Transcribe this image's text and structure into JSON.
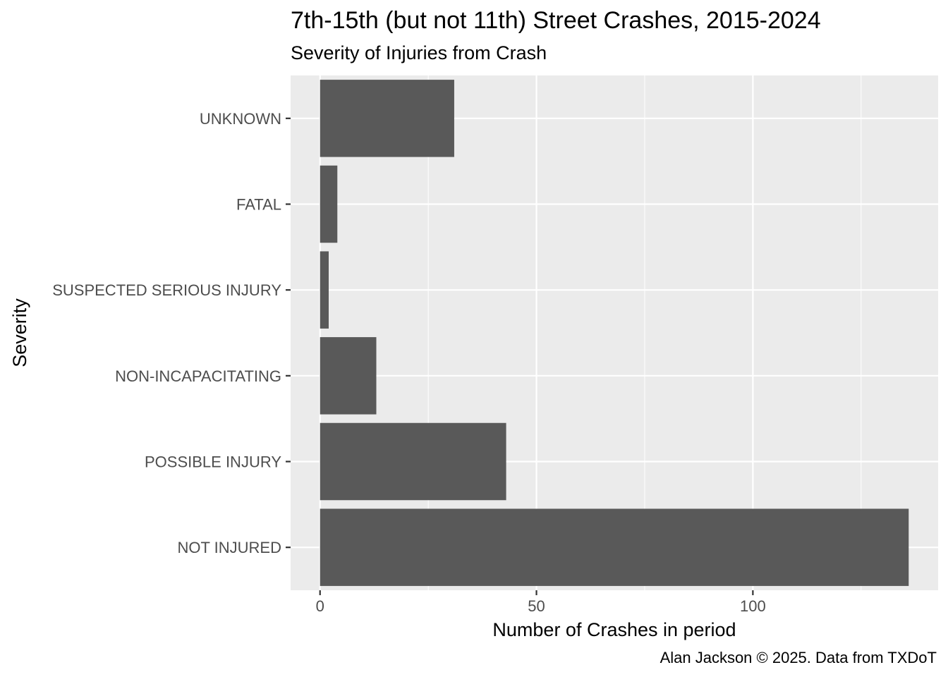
{
  "chart_data": {
    "type": "bar",
    "orientation": "horizontal",
    "title": "7th-15th (but not 11th) Street Crashes, 2015-2024",
    "subtitle": "Severity of Injuries from Crash",
    "xlabel": "Number of Crashes in period",
    "ylabel": "Severity",
    "caption": "Alan Jackson © 2025. Data from TXDoT",
    "categories": [
      "UNKNOWN",
      "FATAL",
      "SUSPECTED SERIOUS INJURY",
      "NON-INCAPACITATING",
      "POSSIBLE INJURY",
      "NOT INJURED"
    ],
    "values": [
      31,
      4,
      2,
      13,
      43,
      136
    ],
    "x_ticks": [
      0,
      50,
      100
    ],
    "xlim": [
      -6.8,
      142.8
    ],
    "grid": true,
    "colors": {
      "bar": "#595959",
      "panel": "#ebebeb",
      "grid": "#ffffff"
    }
  }
}
